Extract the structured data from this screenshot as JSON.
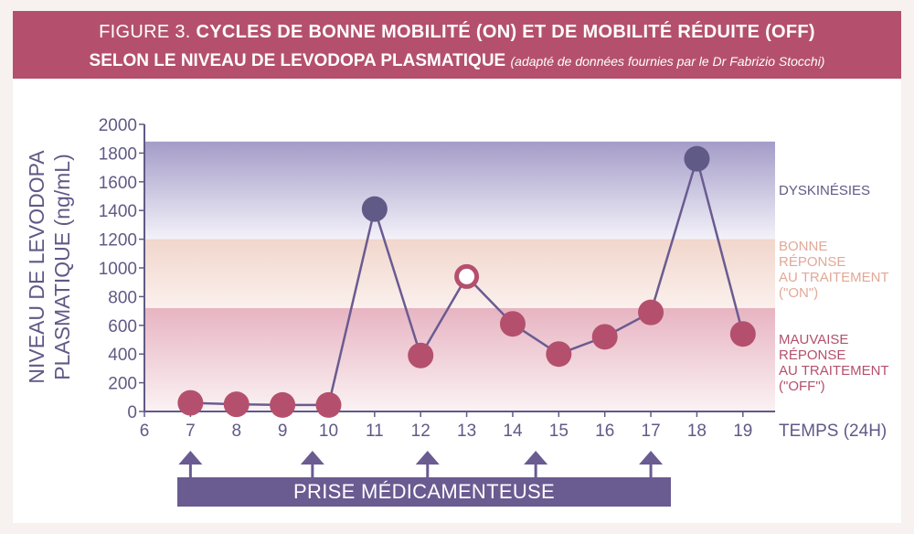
{
  "title": {
    "lead": "FIGURE 3.",
    "line1": "CYCLES DE BONNE MOBILITÉ (ON) ET DE MOBILITÉ RÉDUITE (OFF)",
    "line2": "SELON LE NIVEAU DE LEVODOPA PLASMATIQUE",
    "note": "(adapté de données fournies par le Dr Fabrizio Stocchi)"
  },
  "axes": {
    "ylabel_line1": "NIVEAU DE LEVODOPA",
    "ylabel_line2": "PLASMATIQUE (ng/mL)",
    "xlabel": "TEMPS (24H)"
  },
  "zones": {
    "dyskinesia": [
      "DYSKINÉSIES"
    ],
    "on": [
      "BONNE",
      "RÉPONSE",
      "AU TRAITEMENT",
      "(\"ON\")"
    ],
    "off": [
      "MAUVAISE",
      "RÉPONSE",
      "AU TRAITEMENT",
      "(\"OFF\")"
    ]
  },
  "colors": {
    "title_bg": "#b4506d",
    "axis": "#5f5a86",
    "dyskinesia_zone": "#a49cc8",
    "on_zone": "#f1d6cc",
    "off_zone": "#e7b4c2",
    "point_off": "#b4506d",
    "point_dys": "#5f5a86",
    "line": "#6a5b91",
    "prise_bar": "#6a5b91",
    "dyskinesia_label": "#5f5a86",
    "on_label": "#e2a898",
    "off_label": "#b4506d"
  },
  "prise": {
    "label": "PRISE MÉDICAMENTEUSE",
    "arrows_x": [
      7,
      9.65,
      12.15,
      14.5,
      17
    ]
  },
  "chart_data": {
    "type": "line",
    "xlabel": "TEMPS (24H)",
    "ylabel": "NIVEAU DE LEVODOPA PLASMATIQUE (ng/mL)",
    "xlim": [
      6,
      19.5
    ],
    "ylim": [
      0,
      2000
    ],
    "x_ticks": [
      6,
      7,
      8,
      9,
      10,
      11,
      12,
      13,
      14,
      15,
      16,
      17,
      18,
      19
    ],
    "y_ticks": [
      0,
      200,
      400,
      600,
      800,
      1000,
      1200,
      1400,
      1600,
      1800,
      2000
    ],
    "zones": [
      {
        "name": "DYSKINÉSIES",
        "from": 1200,
        "to": 1880
      },
      {
        "name": "BONNE RÉPONSE AU TRAITEMENT (\"ON\")",
        "from": 720,
        "to": 1200
      },
      {
        "name": "MAUVAISE RÉPONSE AU TRAITEMENT (\"OFF\")",
        "from": 0,
        "to": 720
      }
    ],
    "points": [
      {
        "x": 7,
        "y": 60,
        "state": "off"
      },
      {
        "x": 8,
        "y": 50,
        "state": "off"
      },
      {
        "x": 9,
        "y": 45,
        "state": "off"
      },
      {
        "x": 10,
        "y": 45,
        "state": "off"
      },
      {
        "x": 11,
        "y": 1410,
        "state": "dys"
      },
      {
        "x": 12,
        "y": 390,
        "state": "off"
      },
      {
        "x": 13,
        "y": 940,
        "state": "on"
      },
      {
        "x": 14,
        "y": 610,
        "state": "off"
      },
      {
        "x": 15,
        "y": 400,
        "state": "off"
      },
      {
        "x": 16,
        "y": 520,
        "state": "off"
      },
      {
        "x": 17,
        "y": 690,
        "state": "off"
      },
      {
        "x": 18,
        "y": 1760,
        "state": "dys"
      },
      {
        "x": 19,
        "y": 540,
        "state": "off"
      }
    ],
    "grid": false,
    "legend": "right"
  }
}
